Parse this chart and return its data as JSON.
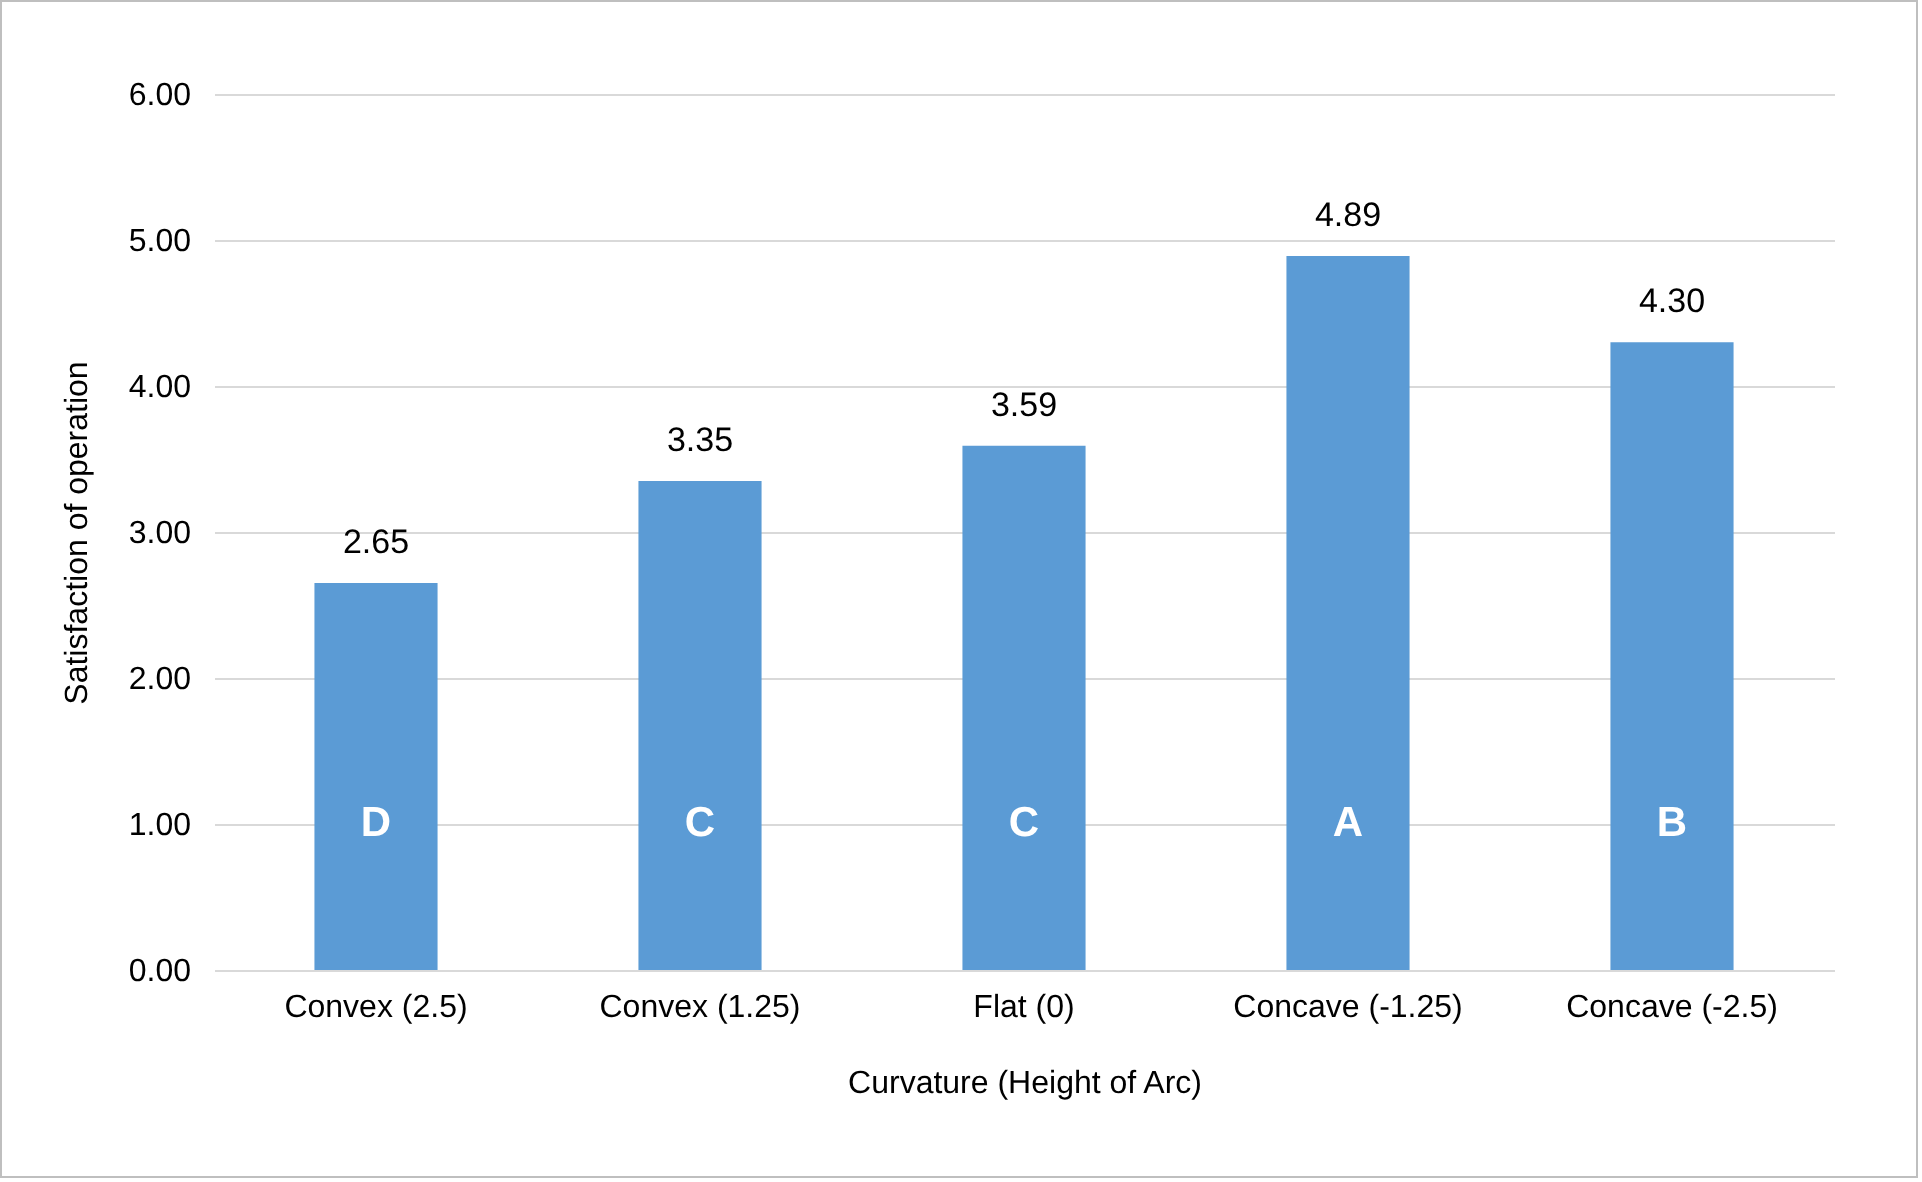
{
  "chart_data": {
    "type": "bar",
    "xlabel": "Curvature (Height of Arc)",
    "ylabel": "Satisfaction of operation",
    "categories": [
      "Convex (2.5)",
      "Convex (1.25)",
      "Flat (0)",
      "Concave (-1.25)",
      "Concave (-2.5)"
    ],
    "values": [
      2.65,
      3.35,
      3.59,
      4.89,
      4.3
    ],
    "value_labels": [
      "2.65",
      "3.35",
      "3.59",
      "4.89",
      "4.30"
    ],
    "color": "#5b9bd5",
    "ylim": [
      0,
      6
    ],
    "yticks": [
      {
        "value": 0,
        "label": "0.00"
      },
      {
        "value": 1,
        "label": "1.00"
      },
      {
        "value": 2,
        "label": "2.00"
      },
      {
        "value": 3,
        "label": "3.00"
      },
      {
        "value": 4,
        "label": "4.00"
      },
      {
        "value": 5,
        "label": "5.00"
      },
      {
        "value": 6,
        "label": "6.00"
      }
    ],
    "grid": "y",
    "annotations": [
      "D",
      "C",
      "C",
      "A",
      "B"
    ]
  }
}
